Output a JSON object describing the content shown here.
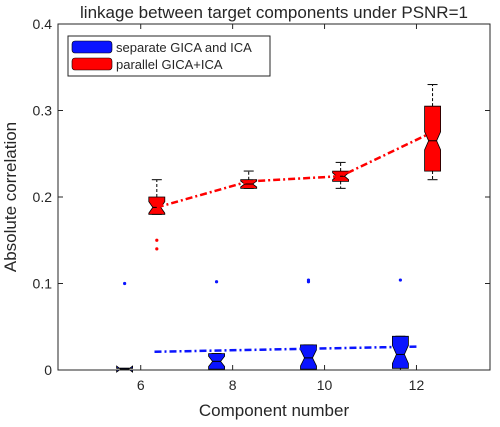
{
  "chart_data": {
    "type": "box",
    "title": "linkage between target components under PSNR=1",
    "xlabel": "Component number",
    "ylabel": "Absolute correlation",
    "xlim": [
      4.2,
      13.6
    ],
    "ylim": [
      0,
      0.4
    ],
    "xticks": [
      6,
      8,
      10,
      12
    ],
    "yticks": [
      0,
      0.1,
      0.2,
      0.3,
      0.4
    ],
    "legend_position": "top-left",
    "grid": false,
    "series": [
      {
        "name": "separate GICA and ICA",
        "color": "#0a14ff",
        "boxes": [
          {
            "x": 5.65,
            "q1": 0.0,
            "median": 0.001,
            "q3": 0.002,
            "whisker_low": 0.0,
            "whisker_high": 0.002,
            "outliers": [
              0.1
            ]
          },
          {
            "x": 7.65,
            "q1": 0.001,
            "median": 0.01,
            "q3": 0.019,
            "whisker_low": 0.0,
            "whisker_high": 0.019,
            "outliers": [
              0.102
            ]
          },
          {
            "x": 9.65,
            "q1": 0.001,
            "median": 0.014,
            "q3": 0.029,
            "whisker_low": 0.0,
            "whisker_high": 0.029,
            "outliers": [
              0.102,
              0.104
            ]
          },
          {
            "x": 11.65,
            "q1": 0.002,
            "median": 0.018,
            "q3": 0.039,
            "whisker_low": 0.0,
            "whisker_high": 0.039,
            "outliers": [
              0.104
            ]
          }
        ],
        "trend": [
          [
            6.3,
            0.021
          ],
          [
            12.0,
            0.027
          ]
        ]
      },
      {
        "name": "parallel GICA+ICA",
        "color": "#ff0000",
        "boxes": [
          {
            "x": 6.35,
            "q1": 0.18,
            "median": 0.188,
            "q3": 0.2,
            "whisker_low": 0.18,
            "whisker_high": 0.22,
            "outliers": [
              0.15,
              0.14
            ]
          },
          {
            "x": 8.35,
            "q1": 0.21,
            "median": 0.215,
            "q3": 0.22,
            "whisker_low": 0.21,
            "whisker_high": 0.23,
            "outliers": []
          },
          {
            "x": 10.35,
            "q1": 0.218,
            "median": 0.224,
            "q3": 0.23,
            "whisker_low": 0.21,
            "whisker_high": 0.24,
            "outliers": []
          },
          {
            "x": 12.35,
            "q1": 0.23,
            "median": 0.265,
            "q3": 0.305,
            "whisker_low": 0.22,
            "whisker_high": 0.33,
            "outliers": []
          }
        ],
        "trend": [
          [
            6.35,
            0.188
          ],
          [
            8.35,
            0.218
          ],
          [
            10.35,
            0.224
          ],
          [
            12.35,
            0.275
          ]
        ]
      }
    ]
  }
}
